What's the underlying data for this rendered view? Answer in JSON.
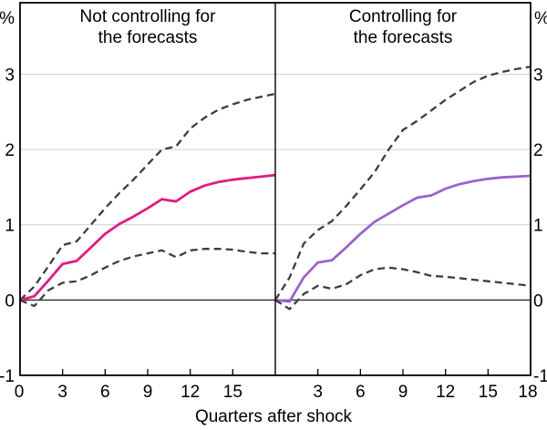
{
  "figure_title": "",
  "axis": {
    "x_label": "Quarters after shock",
    "y_unit_symbol": "%"
  },
  "colors": {
    "pink_line": "#e01a82",
    "purple_line": "#9b63ce",
    "band_dashed": "#3d3d3d",
    "gridline": "#cfcfcf",
    "zero_line": "#3a3a3a",
    "axis": "#000000",
    "text": "#000000",
    "background": "#ffffff"
  },
  "chart_data": {
    "type": "line",
    "xlabel": "Quarters after shock",
    "y_unit": "%",
    "x_quarters": [
      0,
      1,
      2,
      3,
      4,
      5,
      6,
      7,
      8,
      9,
      10,
      11,
      12,
      13,
      14,
      15,
      16,
      17,
      18
    ],
    "xlim": [
      0,
      18
    ],
    "ylim": [
      -1,
      3.95
    ],
    "yticks": [
      -1,
      0,
      1,
      2,
      3
    ],
    "grid_values": [
      1,
      2,
      3
    ],
    "grid_on": true,
    "legend_position": "none",
    "panels": [
      {
        "id": "not-controlling",
        "title_lines": [
          "Not controlling for",
          "the forecasts"
        ],
        "xtick_labels": [
          0,
          3,
          6,
          9,
          12,
          15
        ],
        "series": [
          {
            "name": "upper confidence band",
            "style": "dashed",
            "color": "#3d3d3d",
            "values": [
              0,
              0.18,
              0.45,
              0.73,
              0.78,
              1.0,
              1.22,
              1.42,
              1.6,
              1.8,
              2.0,
              2.04,
              2.28,
              2.42,
              2.53,
              2.6,
              2.66,
              2.7,
              2.74
            ]
          },
          {
            "name": "response not controlling for forecasts",
            "style": "solid",
            "color": "#e01a82",
            "values": [
              0,
              0.05,
              0.26,
              0.48,
              0.52,
              0.7,
              0.88,
              1.01,
              1.11,
              1.22,
              1.34,
              1.31,
              1.44,
              1.52,
              1.57,
              1.6,
              1.62,
              1.64,
              1.66
            ]
          },
          {
            "name": "lower confidence band",
            "style": "dashed",
            "color": "#3d3d3d",
            "values": [
              0,
              -0.08,
              0.13,
              0.23,
              0.25,
              0.33,
              0.43,
              0.52,
              0.58,
              0.62,
              0.66,
              0.57,
              0.66,
              0.68,
              0.68,
              0.67,
              0.64,
              0.62,
              0.62
            ]
          }
        ]
      },
      {
        "id": "controlling",
        "title_lines": [
          "Controlling for",
          "the forecasts"
        ],
        "xtick_labels": [
          3,
          6,
          9,
          12,
          15,
          18
        ],
        "series": [
          {
            "name": "upper confidence band",
            "style": "dashed",
            "color": "#3d3d3d",
            "values": [
              0,
              0.3,
              0.75,
              0.93,
              1.05,
              1.25,
              1.47,
              1.7,
              2.0,
              2.26,
              2.38,
              2.52,
              2.66,
              2.78,
              2.9,
              2.98,
              3.03,
              3.07,
              3.1
            ]
          },
          {
            "name": "response controlling for forecasts",
            "style": "solid",
            "color": "#9b63ce",
            "values": [
              0,
              -0.02,
              0.3,
              0.5,
              0.53,
              0.7,
              0.88,
              1.04,
              1.15,
              1.26,
              1.36,
              1.39,
              1.48,
              1.54,
              1.58,
              1.61,
              1.63,
              1.64,
              1.65
            ]
          },
          {
            "name": "lower confidence band",
            "style": "dashed",
            "color": "#3d3d3d",
            "values": [
              0,
              -0.12,
              0.08,
              0.19,
              0.15,
              0.21,
              0.33,
              0.41,
              0.43,
              0.41,
              0.37,
              0.32,
              0.31,
              0.29,
              0.27,
              0.25,
              0.23,
              0.21,
              0.19
            ]
          }
        ]
      }
    ]
  }
}
